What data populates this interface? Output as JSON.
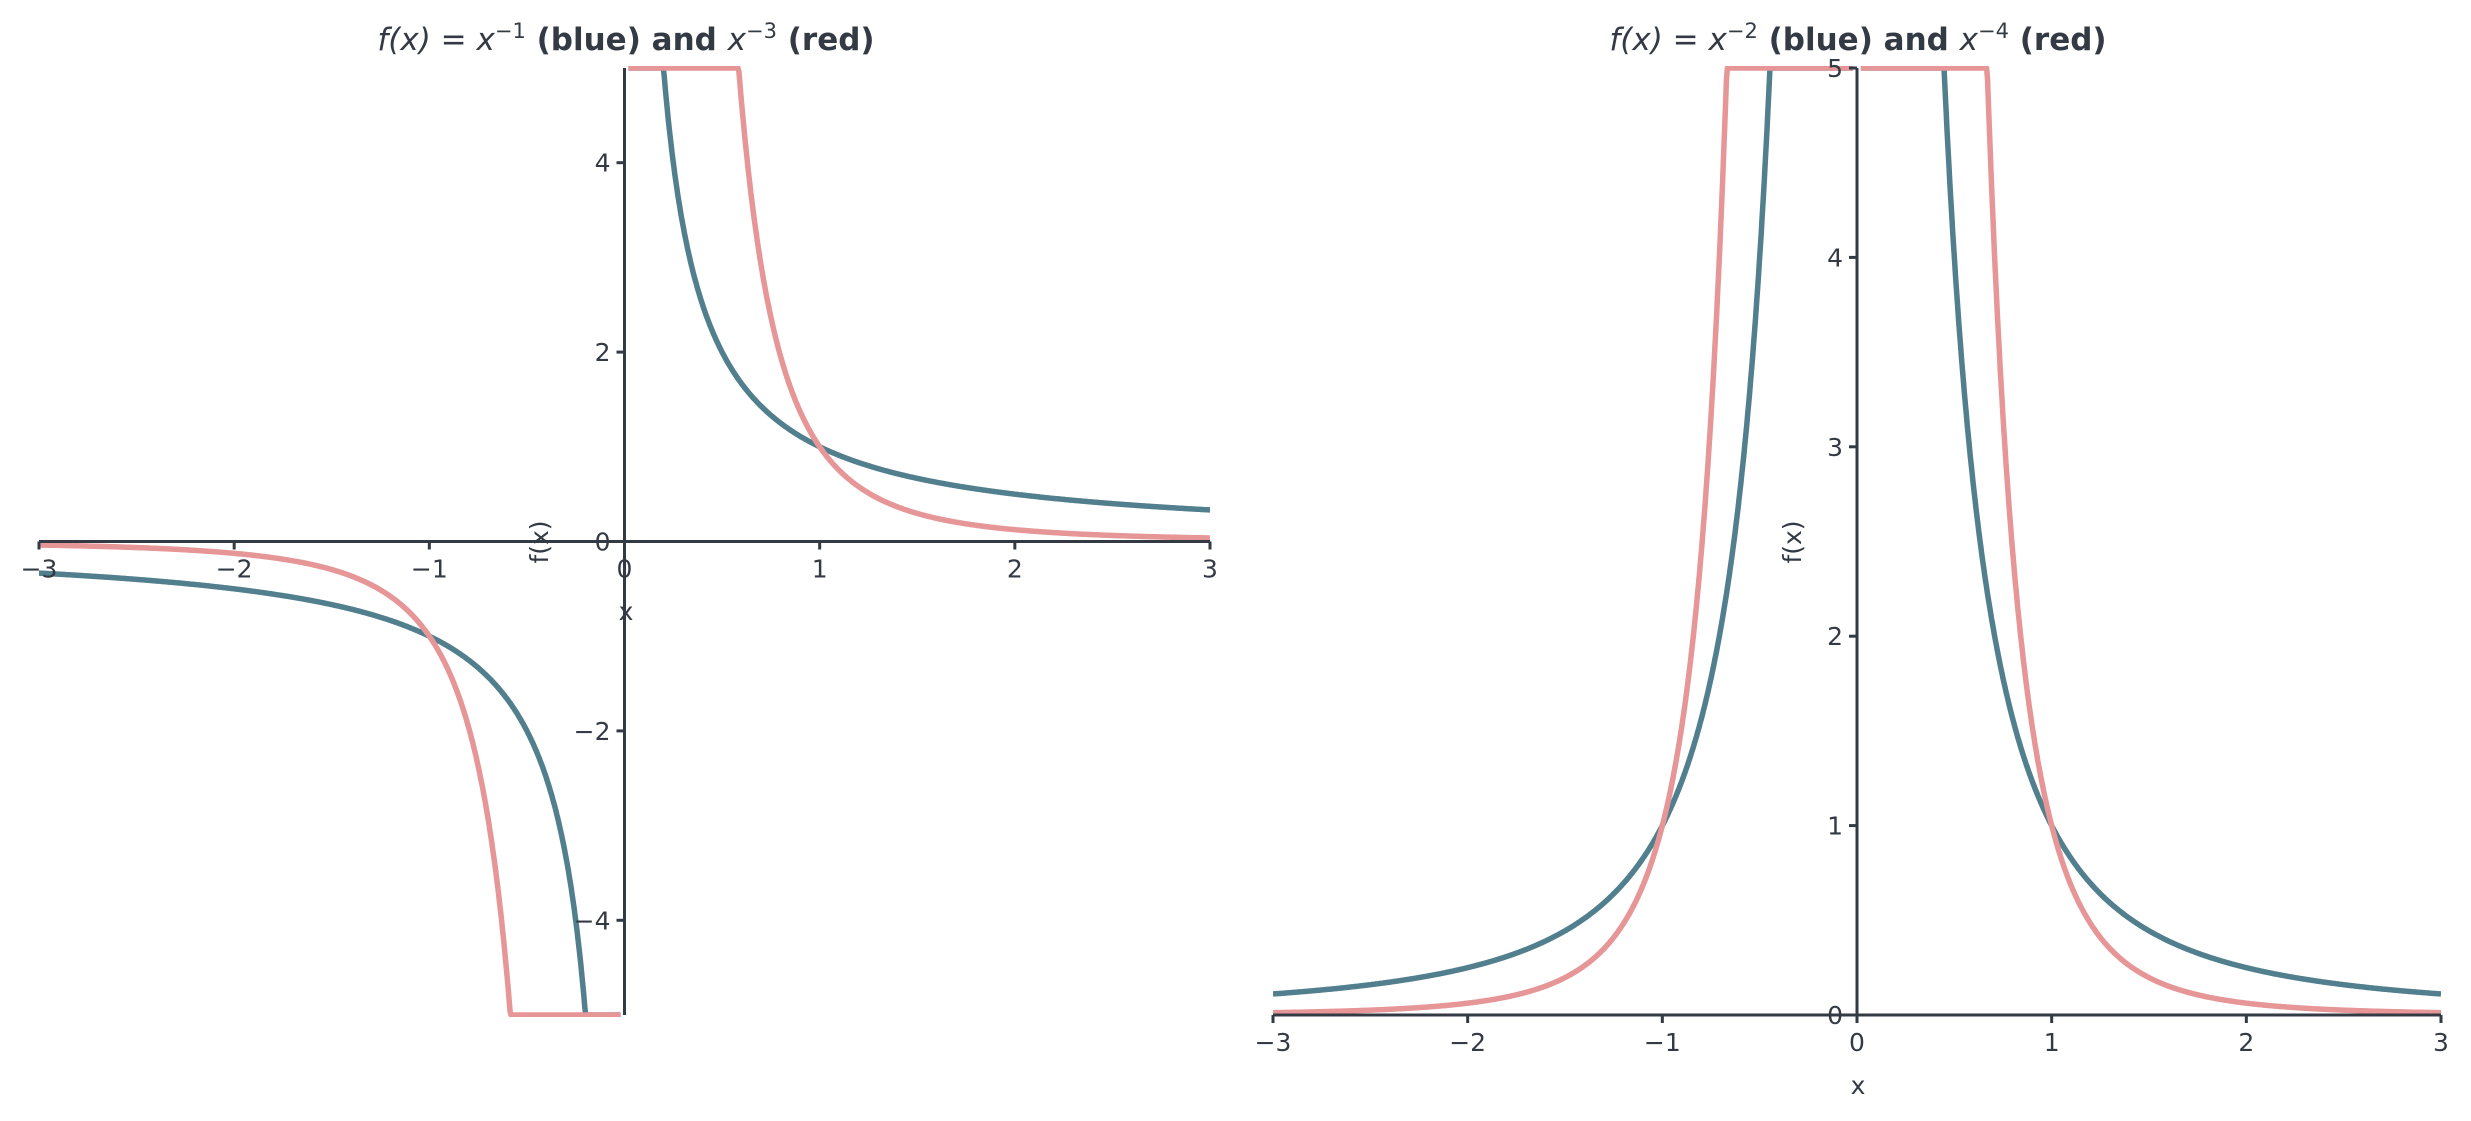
{
  "chart_data": [
    {
      "type": "line",
      "title_parts": {
        "fx": "f(x) = x",
        "exp1": "−1",
        "mid": " (blue) and ",
        "x": "x",
        "exp2": "−3",
        "end": " (red)"
      },
      "xlabel": "x",
      "ylabel": "f(x)",
      "xlim": [
        -3,
        3
      ],
      "ylim": [
        -5,
        5
      ],
      "xticks": [
        -3,
        -2,
        -1,
        0,
        1,
        2,
        3
      ],
      "xtick_labels": [
        "−3",
        "−2",
        "−1",
        "0",
        "1",
        "2",
        "3"
      ],
      "yticks": [
        -4,
        -2,
        0,
        2,
        4
      ],
      "ytick_labels": [
        "−4",
        "−2",
        "0",
        "2",
        "4"
      ],
      "series": [
        {
          "name": "x^-1",
          "exponent": -1,
          "color": "#517f8e"
        },
        {
          "name": "x^-3",
          "exponent": -3,
          "color": "#e69696"
        }
      ],
      "grid": false
    },
    {
      "type": "line",
      "title_parts": {
        "fx": "f(x) = x",
        "exp1": "−2",
        "mid": " (blue) and ",
        "x": "x",
        "exp2": "−4",
        "end": " (red)"
      },
      "xlabel": "x",
      "ylabel": "f(x)",
      "xlim": [
        -3,
        3
      ],
      "ylim": [
        0,
        5
      ],
      "xticks": [
        -3,
        -2,
        -1,
        0,
        1,
        2,
        3
      ],
      "xtick_labels": [
        "−3",
        "−2",
        "−1",
        "0",
        "1",
        "2",
        "3"
      ],
      "yticks": [
        0,
        1,
        2,
        3,
        4,
        5
      ],
      "ytick_labels": [
        "0",
        "1",
        "2",
        "3",
        "4",
        "5"
      ],
      "series": [
        {
          "name": "x^-2",
          "exponent": -2,
          "color": "#517f8e"
        },
        {
          "name": "x^-4",
          "exponent": -4,
          "color": "#e69696"
        }
      ],
      "grid": false
    }
  ]
}
